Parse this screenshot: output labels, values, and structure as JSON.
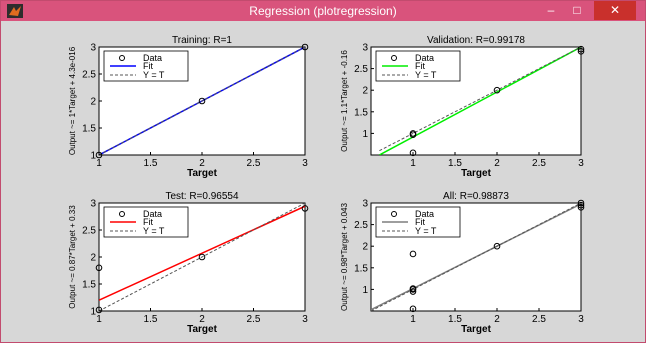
{
  "window": {
    "title": "Regression (plotregression)",
    "minimize_glyph": "–",
    "maximize_glyph": "□",
    "close_glyph": "✕",
    "icon": "matlab-figure-icon",
    "titlebar_color": "#d9537c",
    "close_color": "#c9302c",
    "figure_bg": "#d7d7d7"
  },
  "chart_data": [
    {
      "type": "scatter",
      "title": "Training: R=1",
      "xlabel": "Target",
      "ylabel": "Output ~= 1*Target + 4.3e-016",
      "xlim": [
        1,
        3
      ],
      "ylim": [
        1,
        3
      ],
      "xticks": [
        "1",
        "1.5",
        "2",
        "2.5",
        "3"
      ],
      "yticks": [
        "1",
        "1.5",
        "2",
        "2.5",
        "3"
      ],
      "fit_color": "#0000ff",
      "legend": [
        "Data",
        "Fit",
        "Y = T"
      ],
      "legend_position": "top-left",
      "series": [
        {
          "kind": "data",
          "x": [
            1,
            2,
            3
          ],
          "y": [
            1,
            2,
            3
          ]
        },
        {
          "kind": "fit",
          "x": [
            1,
            3
          ],
          "y": [
            1,
            3
          ]
        },
        {
          "kind": "identity",
          "x": [
            1,
            3
          ],
          "y": [
            1,
            3
          ]
        }
      ]
    },
    {
      "type": "scatter",
      "title": "Validation: R=0.99178",
      "xlabel": "Target",
      "ylabel": "Output ~= 1.1*Target + -0.16",
      "xlim": [
        0.5,
        3
      ],
      "ylim": [
        0.5,
        3
      ],
      "xticks": [
        "1",
        "1.5",
        "2",
        "2.5",
        "3"
      ],
      "yticks": [
        "1",
        "1.5",
        "2",
        "2.5",
        "3"
      ],
      "fit_color": "#00ee00",
      "legend": [
        "Data",
        "Fit",
        "Y = T"
      ],
      "legend_position": "top-left",
      "series": [
        {
          "kind": "data",
          "x": [
            1,
            1,
            1,
            2,
            3,
            3
          ],
          "y": [
            0.55,
            0.97,
            1.0,
            2.0,
            2.9,
            2.95
          ]
        },
        {
          "kind": "fit",
          "x": [
            0.6,
            3
          ],
          "y": [
            0.5,
            3.0
          ]
        },
        {
          "kind": "identity",
          "x": [
            0.6,
            3
          ],
          "y": [
            0.6,
            3
          ]
        }
      ]
    },
    {
      "type": "scatter",
      "title": "Test: R=0.96554",
      "xlabel": "Target",
      "ylabel": "Output ~= 0.87*Target + 0.33",
      "xlim": [
        1,
        3
      ],
      "ylim": [
        1,
        3
      ],
      "xticks": [
        "1",
        "1.5",
        "2",
        "2.5",
        "3"
      ],
      "yticks": [
        "1",
        "1.5",
        "2",
        "2.5",
        "3"
      ],
      "fit_color": "#ff0000",
      "legend": [
        "Data",
        "Fit",
        "Y = T"
      ],
      "legend_position": "top-left",
      "series": [
        {
          "kind": "data",
          "x": [
            1,
            1,
            2,
            3
          ],
          "y": [
            1.8,
            1.02,
            2.0,
            2.9
          ]
        },
        {
          "kind": "fit",
          "x": [
            1,
            3
          ],
          "y": [
            1.2,
            2.94
          ]
        },
        {
          "kind": "identity",
          "x": [
            1,
            3
          ],
          "y": [
            1,
            3
          ]
        }
      ]
    },
    {
      "type": "scatter",
      "title": "All: R=0.98873",
      "xlabel": "Target",
      "ylabel": "Output ~= 0.98*Target + 0.043",
      "xlim": [
        0.5,
        3
      ],
      "ylim": [
        0.5,
        3
      ],
      "xticks": [
        "1",
        "1.5",
        "2",
        "2.5",
        "3"
      ],
      "yticks": [
        "1",
        "1.5",
        "2",
        "2.5",
        "3"
      ],
      "fit_color": "#7f7f7f",
      "legend": [
        "Data",
        "Fit",
        "Y = T"
      ],
      "legend_position": "top-left",
      "series": [
        {
          "kind": "data",
          "x": [
            1,
            1,
            1,
            1,
            1,
            2,
            3,
            3,
            3
          ],
          "y": [
            0.55,
            0.95,
            1.0,
            1.02,
            1.82,
            2.0,
            2.9,
            2.95,
            3.0
          ]
        },
        {
          "kind": "fit",
          "x": [
            0.5,
            3
          ],
          "y": [
            0.53,
            2.98
          ]
        },
        {
          "kind": "identity",
          "x": [
            0.5,
            3
          ],
          "y": [
            0.5,
            3
          ]
        }
      ]
    }
  ]
}
